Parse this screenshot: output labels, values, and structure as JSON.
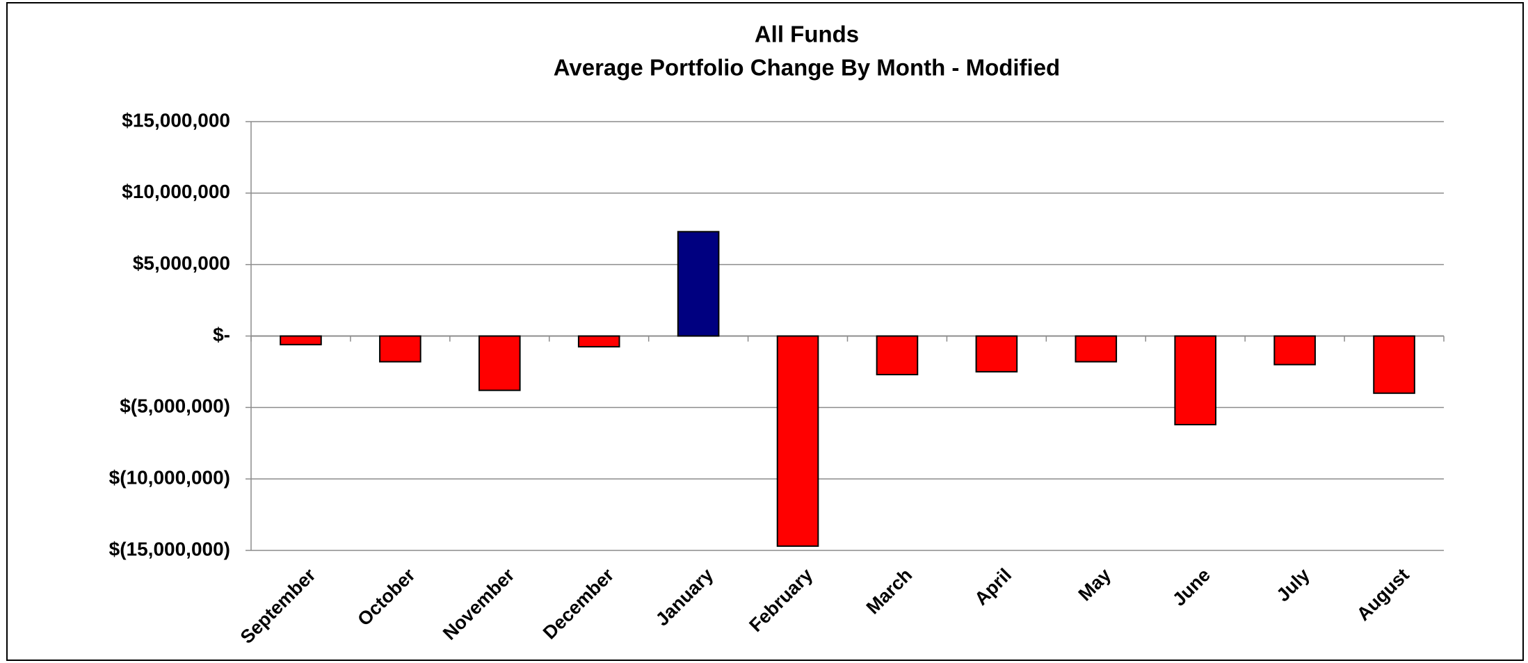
{
  "chart_data": {
    "type": "bar",
    "title": "All Funds",
    "subtitle": "Average Portfolio Change By Month - Modified",
    "categories": [
      "September",
      "October",
      "November",
      "December",
      "January",
      "February",
      "March",
      "April",
      "May",
      "June",
      "July",
      "August"
    ],
    "values": [
      -600000,
      -1800000,
      -3800000,
      -750000,
      7300000,
      -14700000,
      -2700000,
      -2500000,
      -1800000,
      -6200000,
      -2000000,
      -4000000
    ],
    "colors": [
      "#ff0000",
      "#ff0000",
      "#ff0000",
      "#ff0000",
      "#000080",
      "#ff0000",
      "#ff0000",
      "#ff0000",
      "#ff0000",
      "#ff0000",
      "#ff0000",
      "#ff0000"
    ],
    "ylim": [
      -15000000,
      15000000
    ],
    "yticks": [
      {
        "value": 15000000,
        "label": "$15,000,000"
      },
      {
        "value": 10000000,
        "label": "$10,000,000"
      },
      {
        "value": 5000000,
        "label": "$5,000,000"
      },
      {
        "value": 0,
        "label": "$-"
      },
      {
        "value": -5000000,
        "label": "$(5,000,000)"
      },
      {
        "value": -10000000,
        "label": "$(10,000,000)"
      },
      {
        "value": -15000000,
        "label": "$(15,000,000)"
      }
    ],
    "grid": true
  }
}
